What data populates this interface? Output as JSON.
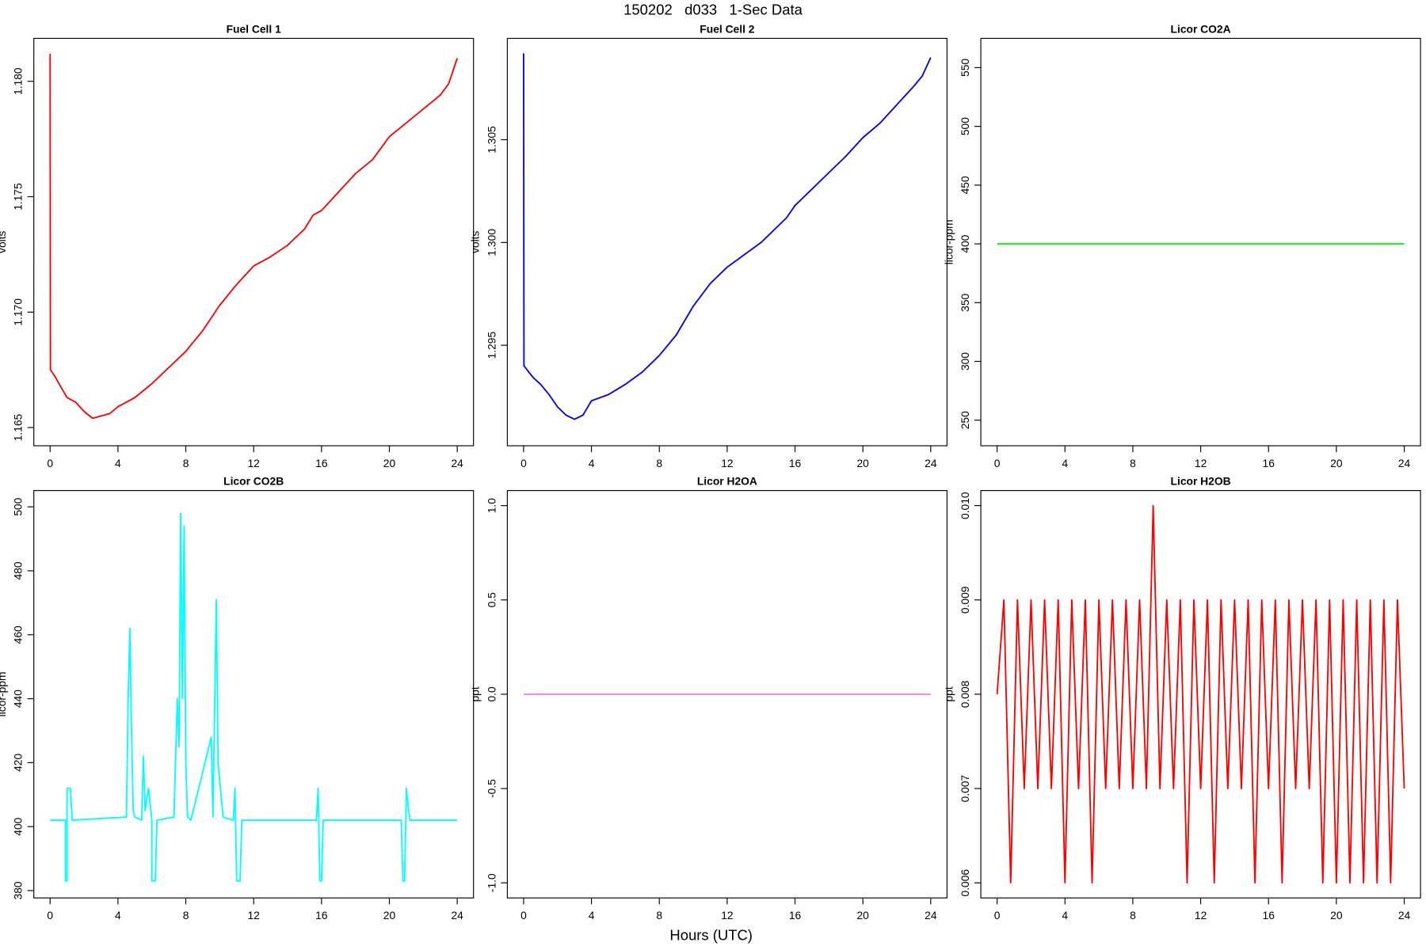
{
  "title": "150202   d033   1-Sec Data",
  "xlabel": "Hours (UTC)",
  "chart_data": [
    {
      "type": "line",
      "title": "Fuel Cell 1",
      "ylabel": "volts",
      "color": "#ff0000",
      "x": [
        0,
        0.02,
        0.3,
        0.6,
        1,
        1.5,
        2,
        2.5,
        3,
        3.5,
        4,
        5,
        6,
        7,
        8,
        9,
        10,
        11,
        12,
        13,
        14,
        15,
        15.5,
        16,
        17,
        18,
        19,
        20,
        21,
        22,
        23,
        23.5,
        24
      ],
      "values": [
        1.1812,
        1.1675,
        1.1672,
        1.1668,
        1.1663,
        1.1661,
        1.1657,
        1.1654,
        1.1655,
        1.1656,
        1.1659,
        1.1663,
        1.1669,
        1.1676,
        1.1683,
        1.1692,
        1.1703,
        1.1712,
        1.172,
        1.1724,
        1.1729,
        1.1736,
        1.1742,
        1.1744,
        1.1752,
        1.176,
        1.1766,
        1.1776,
        1.1782,
        1.1788,
        1.1794,
        1.1799,
        1.181
      ],
      "xlim": [
        -0.96,
        24.96
      ],
      "xticks": [
        0,
        4,
        8,
        12,
        16,
        20,
        24
      ],
      "ylim": [
        1.16421,
        1.18186
      ],
      "yticks": [
        1.165,
        {
          "value": 1.17,
          "label": "1.170"
        },
        1.175,
        {
          "value": 1.18,
          "label": "1.180"
        }
      ]
    },
    {
      "type": "line",
      "title": "Fuel Cell 2",
      "ylabel": "volts",
      "color": "#0000ff",
      "x": [
        0,
        0.02,
        0.3,
        0.6,
        1,
        1.5,
        2,
        2.5,
        3,
        3.5,
        4,
        5,
        6,
        7,
        8,
        9,
        10,
        11,
        12,
        13,
        14,
        15,
        15.5,
        16,
        17,
        18,
        19,
        20,
        21,
        22,
        23,
        23.5,
        24
      ],
      "values": [
        1.3092,
        1.294,
        1.2937,
        1.2934,
        1.2931,
        1.2926,
        1.292,
        1.2916,
        1.2914,
        1.2916,
        1.2923,
        1.2926,
        1.2931,
        1.2937,
        1.2945,
        1.2955,
        1.2969,
        1.298,
        1.2988,
        1.2994,
        1.3,
        1.3008,
        1.3012,
        1.3018,
        1.3026,
        1.3034,
        1.3042,
        1.3051,
        1.3058,
        1.3067,
        1.3076,
        1.3081,
        1.309
      ],
      "xlim": [
        -0.96,
        24.96
      ],
      "xticks": [
        0,
        4,
        8,
        12,
        16,
        20,
        24
      ],
      "ylim": [
        1.29011,
        1.30993
      ],
      "yticks": [
        1.295,
        {
          "value": 1.3,
          "label": "1.300"
        },
        1.305
      ]
    },
    {
      "type": "line",
      "title": "Licor CO2A",
      "ylabel": "licor-ppm",
      "color": "#00ff00",
      "x": [
        0,
        24
      ],
      "values": [
        400,
        400
      ],
      "xlim": [
        -0.96,
        24.96
      ],
      "xticks": [
        0,
        4,
        8,
        12,
        16,
        20,
        24
      ],
      "ylim": [
        228.2,
        574.9
      ],
      "yticks": [
        250,
        300,
        350,
        400,
        450,
        500,
        550
      ]
    },
    {
      "type": "line",
      "title": "Licor CO2B",
      "ylabel": "licor-ppm",
      "color": "#00ffff",
      "x": [
        0,
        0.9,
        0.9,
        1.0,
        1.0,
        1.2,
        1.3,
        4.5,
        4.6,
        4.7,
        4.8,
        4.9,
        5.0,
        5.4,
        5.5,
        5.6,
        5.8,
        6.0,
        6.0,
        6.2,
        6.3,
        7.3,
        7.5,
        7.6,
        7.7,
        7.8,
        7.9,
        8.0,
        8.1,
        8.3,
        9.5,
        9.6,
        9.8,
        9.9,
        10.2,
        10.8,
        10.9,
        11.0,
        11.2,
        11.3,
        15.7,
        15.8,
        15.9,
        16.0,
        16.1,
        20.7,
        20.8,
        20.9,
        21.0,
        21.2,
        24
      ],
      "values": [
        402,
        402,
        383,
        383,
        412,
        412,
        402,
        403,
        440,
        462,
        430,
        405,
        403,
        402,
        422,
        405,
        412,
        402,
        383,
        383,
        402,
        403,
        440,
        425,
        498,
        440,
        494,
        420,
        403,
        402,
        428,
        403,
        471,
        420,
        403,
        402,
        412,
        383,
        383,
        402,
        402,
        412,
        383,
        383,
        402,
        402,
        383,
        383,
        412,
        402,
        402
      ],
      "xlim": [
        -0.96,
        24.96
      ],
      "xticks": [
        0,
        4,
        8,
        12,
        16,
        20,
        24
      ],
      "ylim": [
        377.7,
        505.1
      ],
      "yticks": [
        380,
        400,
        420,
        440,
        460,
        480,
        500
      ]
    },
    {
      "type": "line",
      "title": "Licor H2OA",
      "ylabel": "ppt",
      "color": "#ee82ee",
      "x": [
        0,
        24
      ],
      "values": [
        0,
        0
      ],
      "xlim": [
        -0.96,
        24.96
      ],
      "xticks": [
        0,
        4,
        8,
        12,
        16,
        20,
        24
      ],
      "ylim": [
        -1.08,
        1.08
      ],
      "yticks": [
        {
          "value": -1,
          "label": "-1.0"
        },
        -0.5,
        {
          "value": 0,
          "label": "0.0"
        },
        0.5,
        {
          "value": 1,
          "label": "1.0"
        }
      ]
    },
    {
      "type": "line",
      "title": "Licor H2OB",
      "ylabel": "ppt",
      "color": "#ff0000",
      "x": [
        0,
        0.4,
        0.8,
        1.2,
        1.6,
        2,
        2.4,
        2.8,
        3.2,
        3.6,
        4,
        4.4,
        4.8,
        5.2,
        5.6,
        6,
        6.4,
        6.8,
        7.2,
        7.6,
        8,
        8.4,
        8.8,
        9.2,
        9.6,
        10,
        10.4,
        10.8,
        11.2,
        11.6,
        12,
        12.4,
        12.8,
        13.2,
        13.6,
        14,
        14.4,
        14.8,
        15.2,
        15.6,
        16,
        16.4,
        16.8,
        17.2,
        17.6,
        18,
        18.4,
        18.8,
        19.2,
        19.6,
        20,
        20.4,
        20.8,
        21.2,
        21.6,
        22,
        22.4,
        22.8,
        23.2,
        23.6,
        24
      ],
      "values": [
        0.008,
        0.009,
        0.006,
        0.009,
        0.007,
        0.009,
        0.007,
        0.009,
        0.007,
        0.009,
        0.006,
        0.009,
        0.007,
        0.009,
        0.006,
        0.009,
        0.007,
        0.009,
        0.007,
        0.009,
        0.007,
        0.009,
        0.007,
        0.01,
        0.007,
        0.009,
        0.007,
        0.009,
        0.006,
        0.009,
        0.007,
        0.009,
        0.006,
        0.009,
        0.007,
        0.009,
        0.007,
        0.009,
        0.006,
        0.009,
        0.007,
        0.009,
        0.006,
        0.009,
        0.007,
        0.009,
        0.007,
        0.009,
        0.006,
        0.009,
        0.006,
        0.009,
        0.006,
        0.009,
        0.006,
        0.009,
        0.006,
        0.009,
        0.006,
        0.009,
        0.007
      ],
      "xlim": [
        -0.96,
        24.96
      ],
      "xticks": [
        0,
        4,
        8,
        12,
        16,
        20,
        24
      ],
      "ylim": [
        0.00584,
        0.01016
      ],
      "yticks": [
        0.006,
        0.007,
        0.008,
        0.009,
        {
          "value": 0.01,
          "label": "0.010"
        }
      ]
    }
  ]
}
